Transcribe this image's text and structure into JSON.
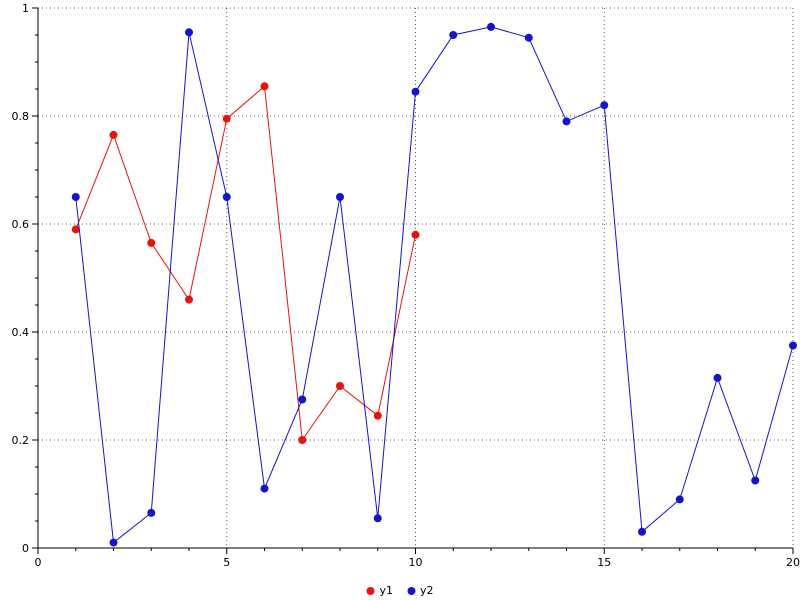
{
  "chart_data": {
    "type": "line",
    "title": "",
    "xlabel": "",
    "ylabel": "",
    "xlim": [
      0,
      20
    ],
    "ylim": [
      0,
      1
    ],
    "xticks": [
      0,
      5,
      10,
      15,
      20
    ],
    "yticks": [
      0,
      0.2,
      0.4,
      0.6,
      0.8,
      1
    ],
    "x_minor_step": 1,
    "y_minor_step": 0.05,
    "grid": true,
    "grid_style": "dotted",
    "legend_position": "bottom-center",
    "background": "#ffffff",
    "axis_color": "#000000",
    "series": [
      {
        "name": "y1",
        "color": "#e8130c",
        "marker": "circle",
        "x": [
          1,
          2,
          3,
          4,
          5,
          6,
          7,
          8,
          9,
          10
        ],
        "y": [
          0.59,
          0.765,
          0.565,
          0.46,
          0.795,
          0.855,
          0.2,
          0.3,
          0.245,
          0.58
        ]
      },
      {
        "name": "y2",
        "color": "#1414c8",
        "marker": "circle",
        "x": [
          1,
          2,
          3,
          4,
          5,
          6,
          7,
          8,
          9,
          10,
          11,
          12,
          13,
          14,
          15,
          16,
          17,
          18,
          19,
          20
        ],
        "y": [
          0.65,
          0.01,
          0.065,
          0.955,
          0.65,
          0.11,
          0.275,
          0.65,
          0.055,
          0.845,
          0.95,
          0.965,
          0.945,
          0.79,
          0.82,
          0.03,
          0.09,
          0.315,
          0.125,
          0.375
        ]
      }
    ]
  }
}
